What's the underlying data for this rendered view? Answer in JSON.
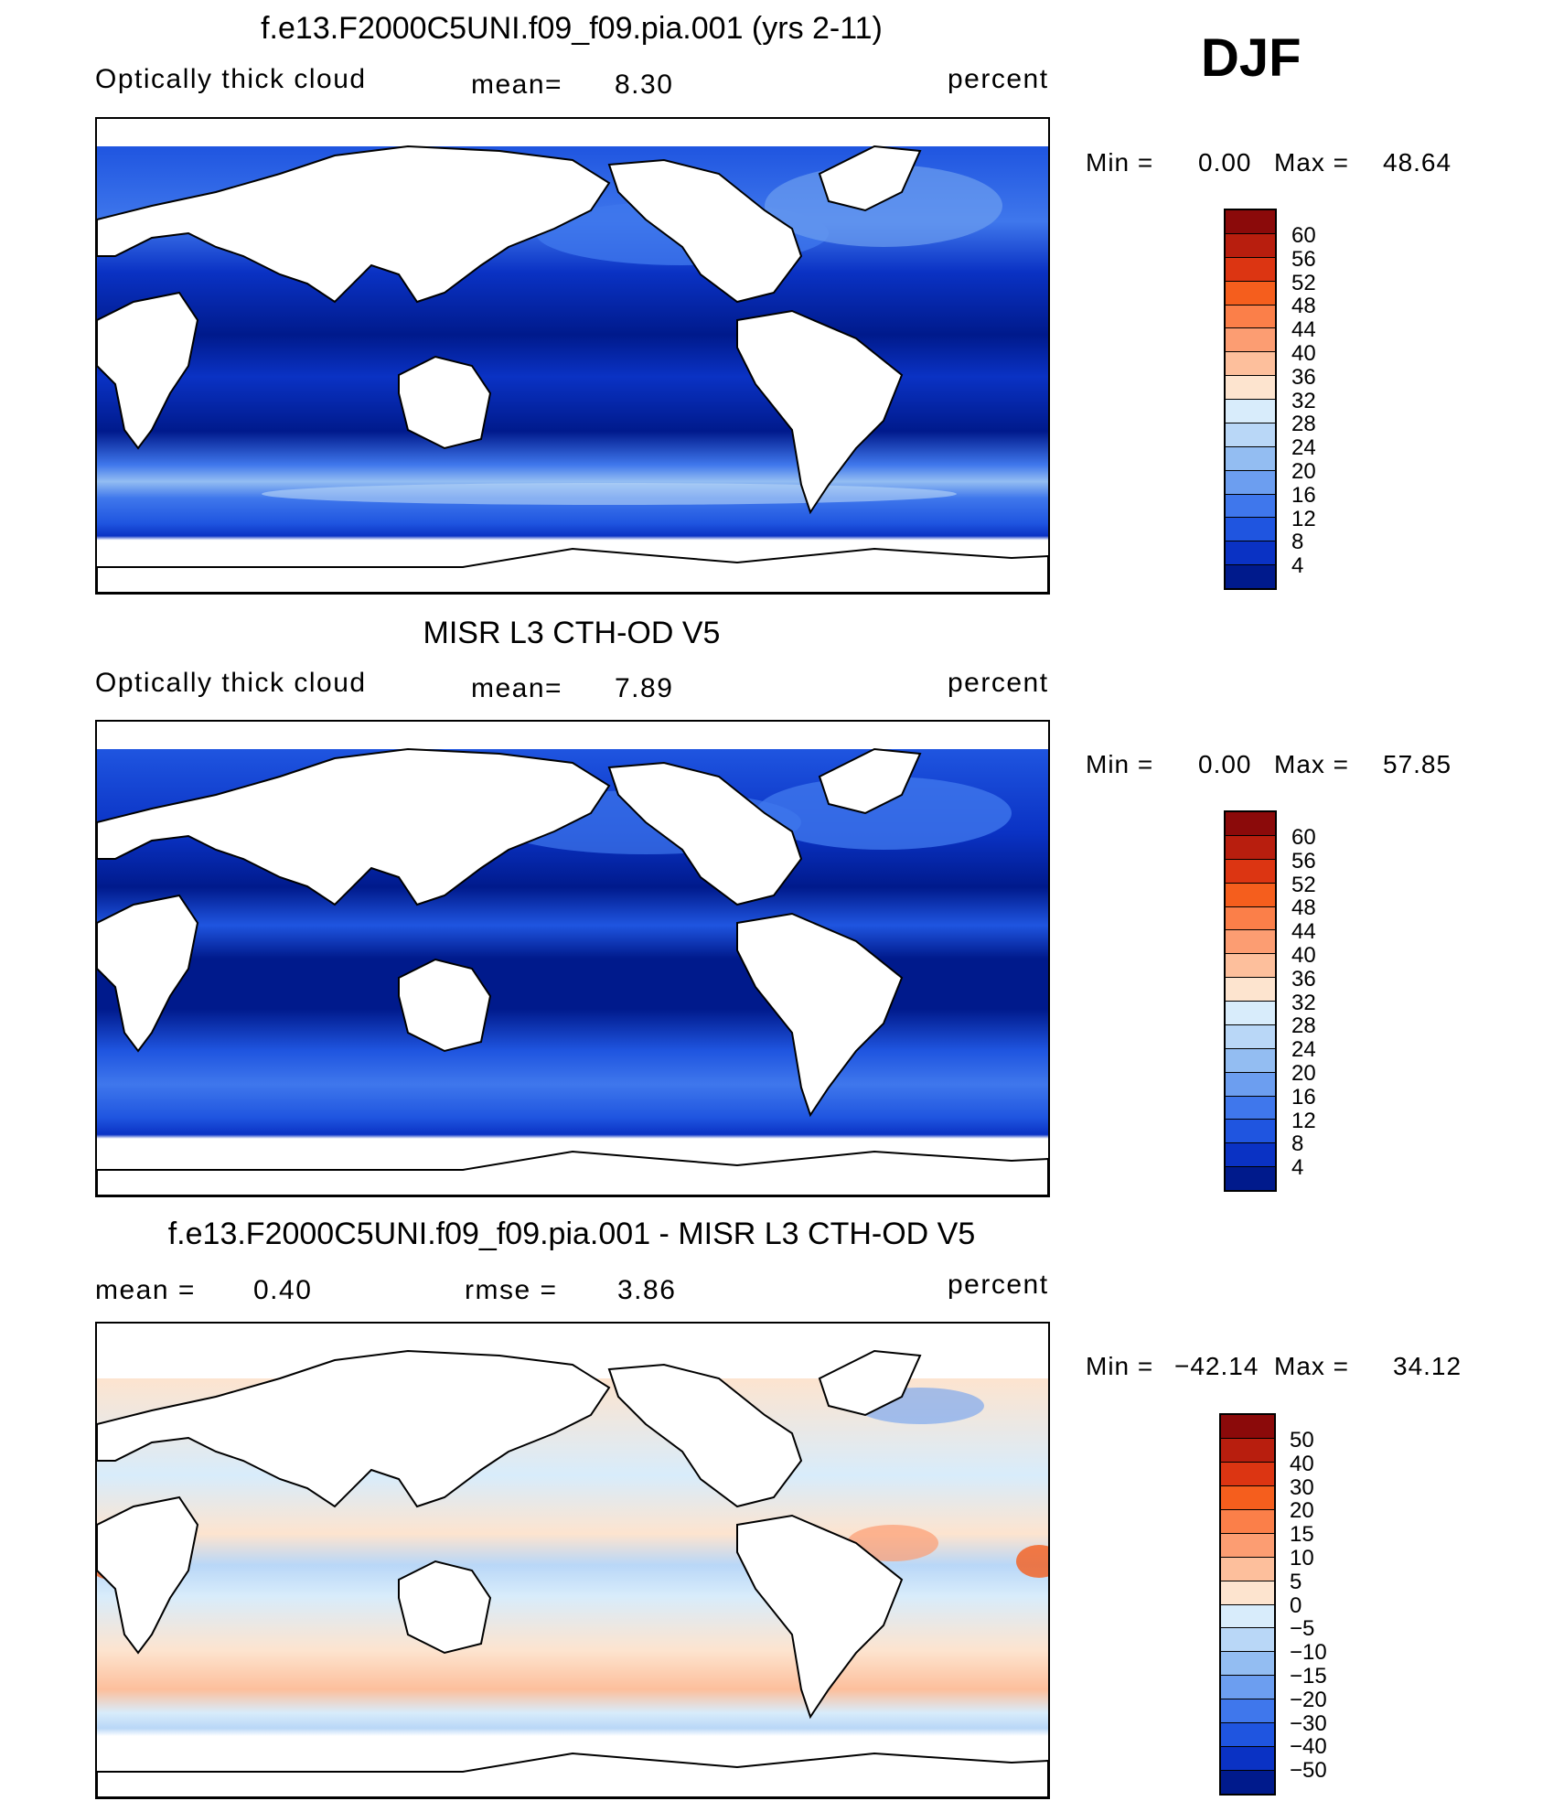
{
  "season": "DJF",
  "panels": [
    {
      "title": "f.e13.F2000C5UNI.f09_f09.pia.001 (yrs 2-11)",
      "left_label": "Optically thick cloud",
      "mean_label": "mean=",
      "mean_value": "8.30",
      "units": "percent",
      "min_label": "Min =",
      "min_value": "0.00",
      "max_label": "Max =",
      "max_value": "48.64"
    },
    {
      "title": "MISR L3 CTH-OD V5",
      "left_label": "Optically thick cloud",
      "mean_label": "mean=",
      "mean_value": "7.89",
      "units": "percent",
      "min_label": "Min =",
      "min_value": "0.00",
      "max_label": "Max =",
      "max_value": "57.85"
    },
    {
      "title": "f.e13.F2000C5UNI.f09_f09.pia.001 - MISR L3 CTH-OD V5",
      "mean_label": "mean =",
      "mean_value": "0.40",
      "rmse_label": "rmse =",
      "rmse_value": "3.86",
      "units": "percent",
      "min_label": "Min =",
      "min_value": "−42.14",
      "max_label": "Max =",
      "max_value": "34.12"
    }
  ],
  "colorbars": {
    "absolute": {
      "labels": [
        "60",
        "56",
        "52",
        "48",
        "44",
        "40",
        "36",
        "32",
        "28",
        "24",
        "20",
        "16",
        "12",
        "8",
        "4"
      ],
      "colors": [
        "#8b0a0a",
        "#b81e0e",
        "#dc3512",
        "#f55e1d",
        "#fb7f49",
        "#fc9d72",
        "#fdbf9c",
        "#fde4cf",
        "#d8ecfb",
        "#b9d7f7",
        "#93bdf2",
        "#6c9ef0",
        "#3f77ec",
        "#1f55e0",
        "#0a32c4",
        "#001a8c"
      ]
    },
    "difference": {
      "labels": [
        "50",
        "40",
        "30",
        "20",
        "15",
        "10",
        "5",
        "0",
        "−5",
        "−10",
        "−15",
        "−20",
        "−30",
        "−40",
        "−50"
      ],
      "colors": [
        "#8b0a0a",
        "#b81e0e",
        "#dc3512",
        "#f55e1d",
        "#fb7f49",
        "#fc9d72",
        "#fdbf9c",
        "#fde4cf",
        "#d8ecfb",
        "#b9d7f7",
        "#93bdf2",
        "#6c9ef0",
        "#3f77ec",
        "#1f55e0",
        "#0a32c4",
        "#001a8c"
      ]
    }
  },
  "chart_data": [
    {
      "type": "heatmap",
      "title": "f.e13.F2000C5UNI.f09_f09.pia.001 (yrs 2-11)",
      "variable": "Optically thick cloud",
      "units": "percent",
      "mean": 8.3,
      "min": 0.0,
      "max": 48.64,
      "levels": [
        4,
        8,
        12,
        16,
        20,
        24,
        28,
        32,
        36,
        40,
        44,
        48,
        52,
        56,
        60
      ],
      "projection": "global cylindrical, Pacific-centred"
    },
    {
      "type": "heatmap",
      "title": "MISR L3 CTH-OD V5",
      "variable": "Optically thick cloud",
      "units": "percent",
      "mean": 7.89,
      "min": 0.0,
      "max": 57.85,
      "levels": [
        4,
        8,
        12,
        16,
        20,
        24,
        28,
        32,
        36,
        40,
        44,
        48,
        52,
        56,
        60
      ],
      "projection": "global cylindrical, Pacific-centred"
    },
    {
      "type": "heatmap",
      "title": "f.e13.F2000C5UNI.f09_f09.pia.001 - MISR L3 CTH-OD V5",
      "units": "percent",
      "mean": 0.4,
      "rmse": 3.86,
      "min": -42.14,
      "max": 34.12,
      "levels": [
        -50,
        -40,
        -30,
        -20,
        -15,
        -10,
        -5,
        0,
        5,
        10,
        15,
        20,
        30,
        40,
        50
      ],
      "projection": "global cylindrical, Pacific-centred"
    }
  ]
}
